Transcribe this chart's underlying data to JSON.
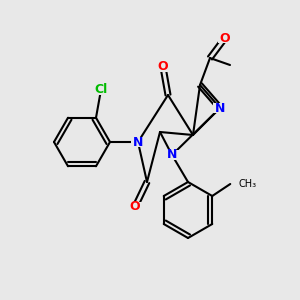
{
  "bg_color": "#e8e8e8",
  "bond_color": "#000000",
  "bond_lw": 1.5,
  "atom_colors": {
    "N": "#0000ff",
    "O": "#ff0000",
    "Cl": "#00bb00",
    "C": "#000000"
  },
  "font_size": 9,
  "font_size_small": 8
}
